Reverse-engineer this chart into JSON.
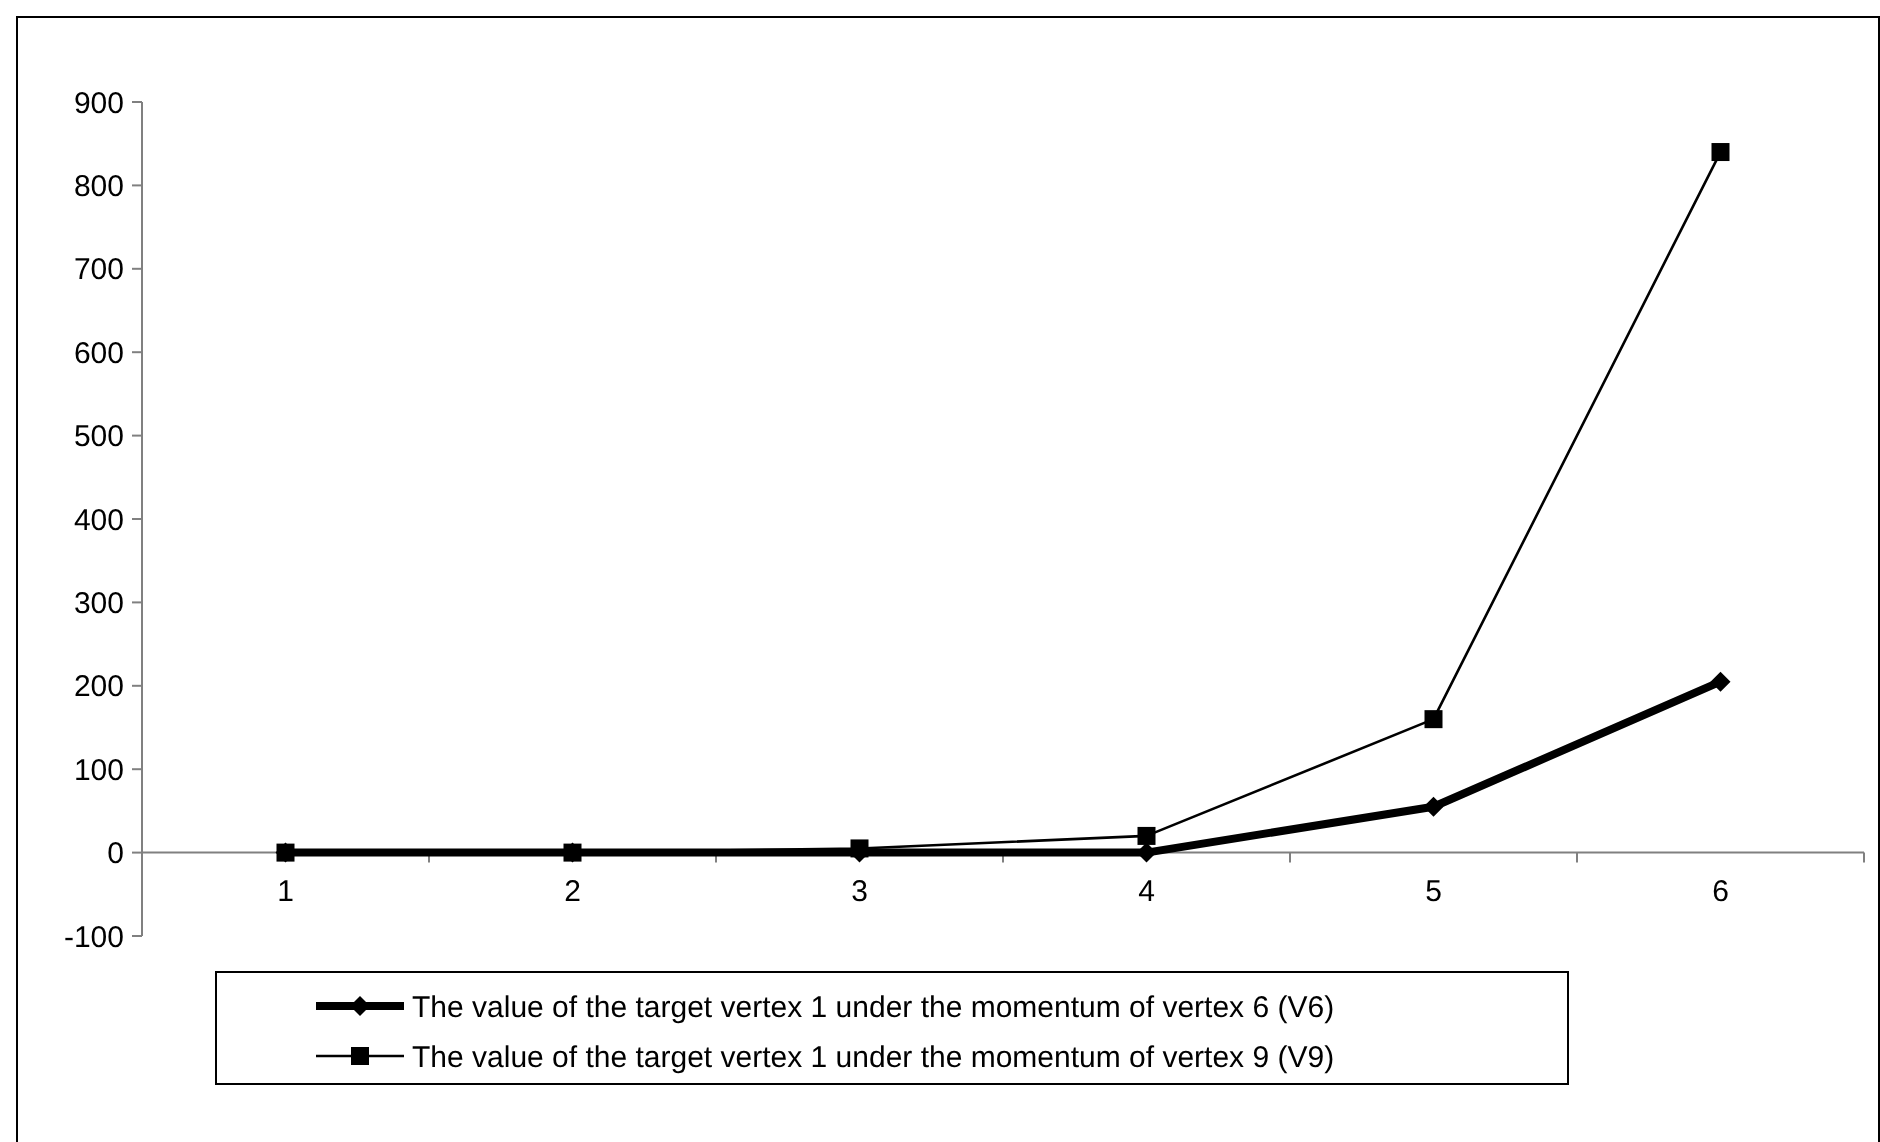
{
  "chart_data": {
    "type": "line",
    "categories": [
      "1",
      "2",
      "3",
      "4",
      "5",
      "6"
    ],
    "series": [
      {
        "name": "The value of the target vertex 1 under the momentum of vertex 6 (V6)",
        "color": "#000000",
        "marker": "diamond",
        "values": [
          0,
          0,
          0,
          0,
          55,
          205
        ]
      },
      {
        "name": "The value of the target vertex 1 under the momentum of vertex 9 (V9)",
        "color": "#000000",
        "marker": "square",
        "values": [
          0,
          0,
          5,
          20,
          160,
          840
        ]
      }
    ],
    "ylim": [
      -100,
      900
    ],
    "yticks": [
      -100,
      0,
      100,
      200,
      300,
      400,
      500,
      600,
      700,
      800,
      900
    ],
    "grid": false,
    "legend": "bottom"
  }
}
